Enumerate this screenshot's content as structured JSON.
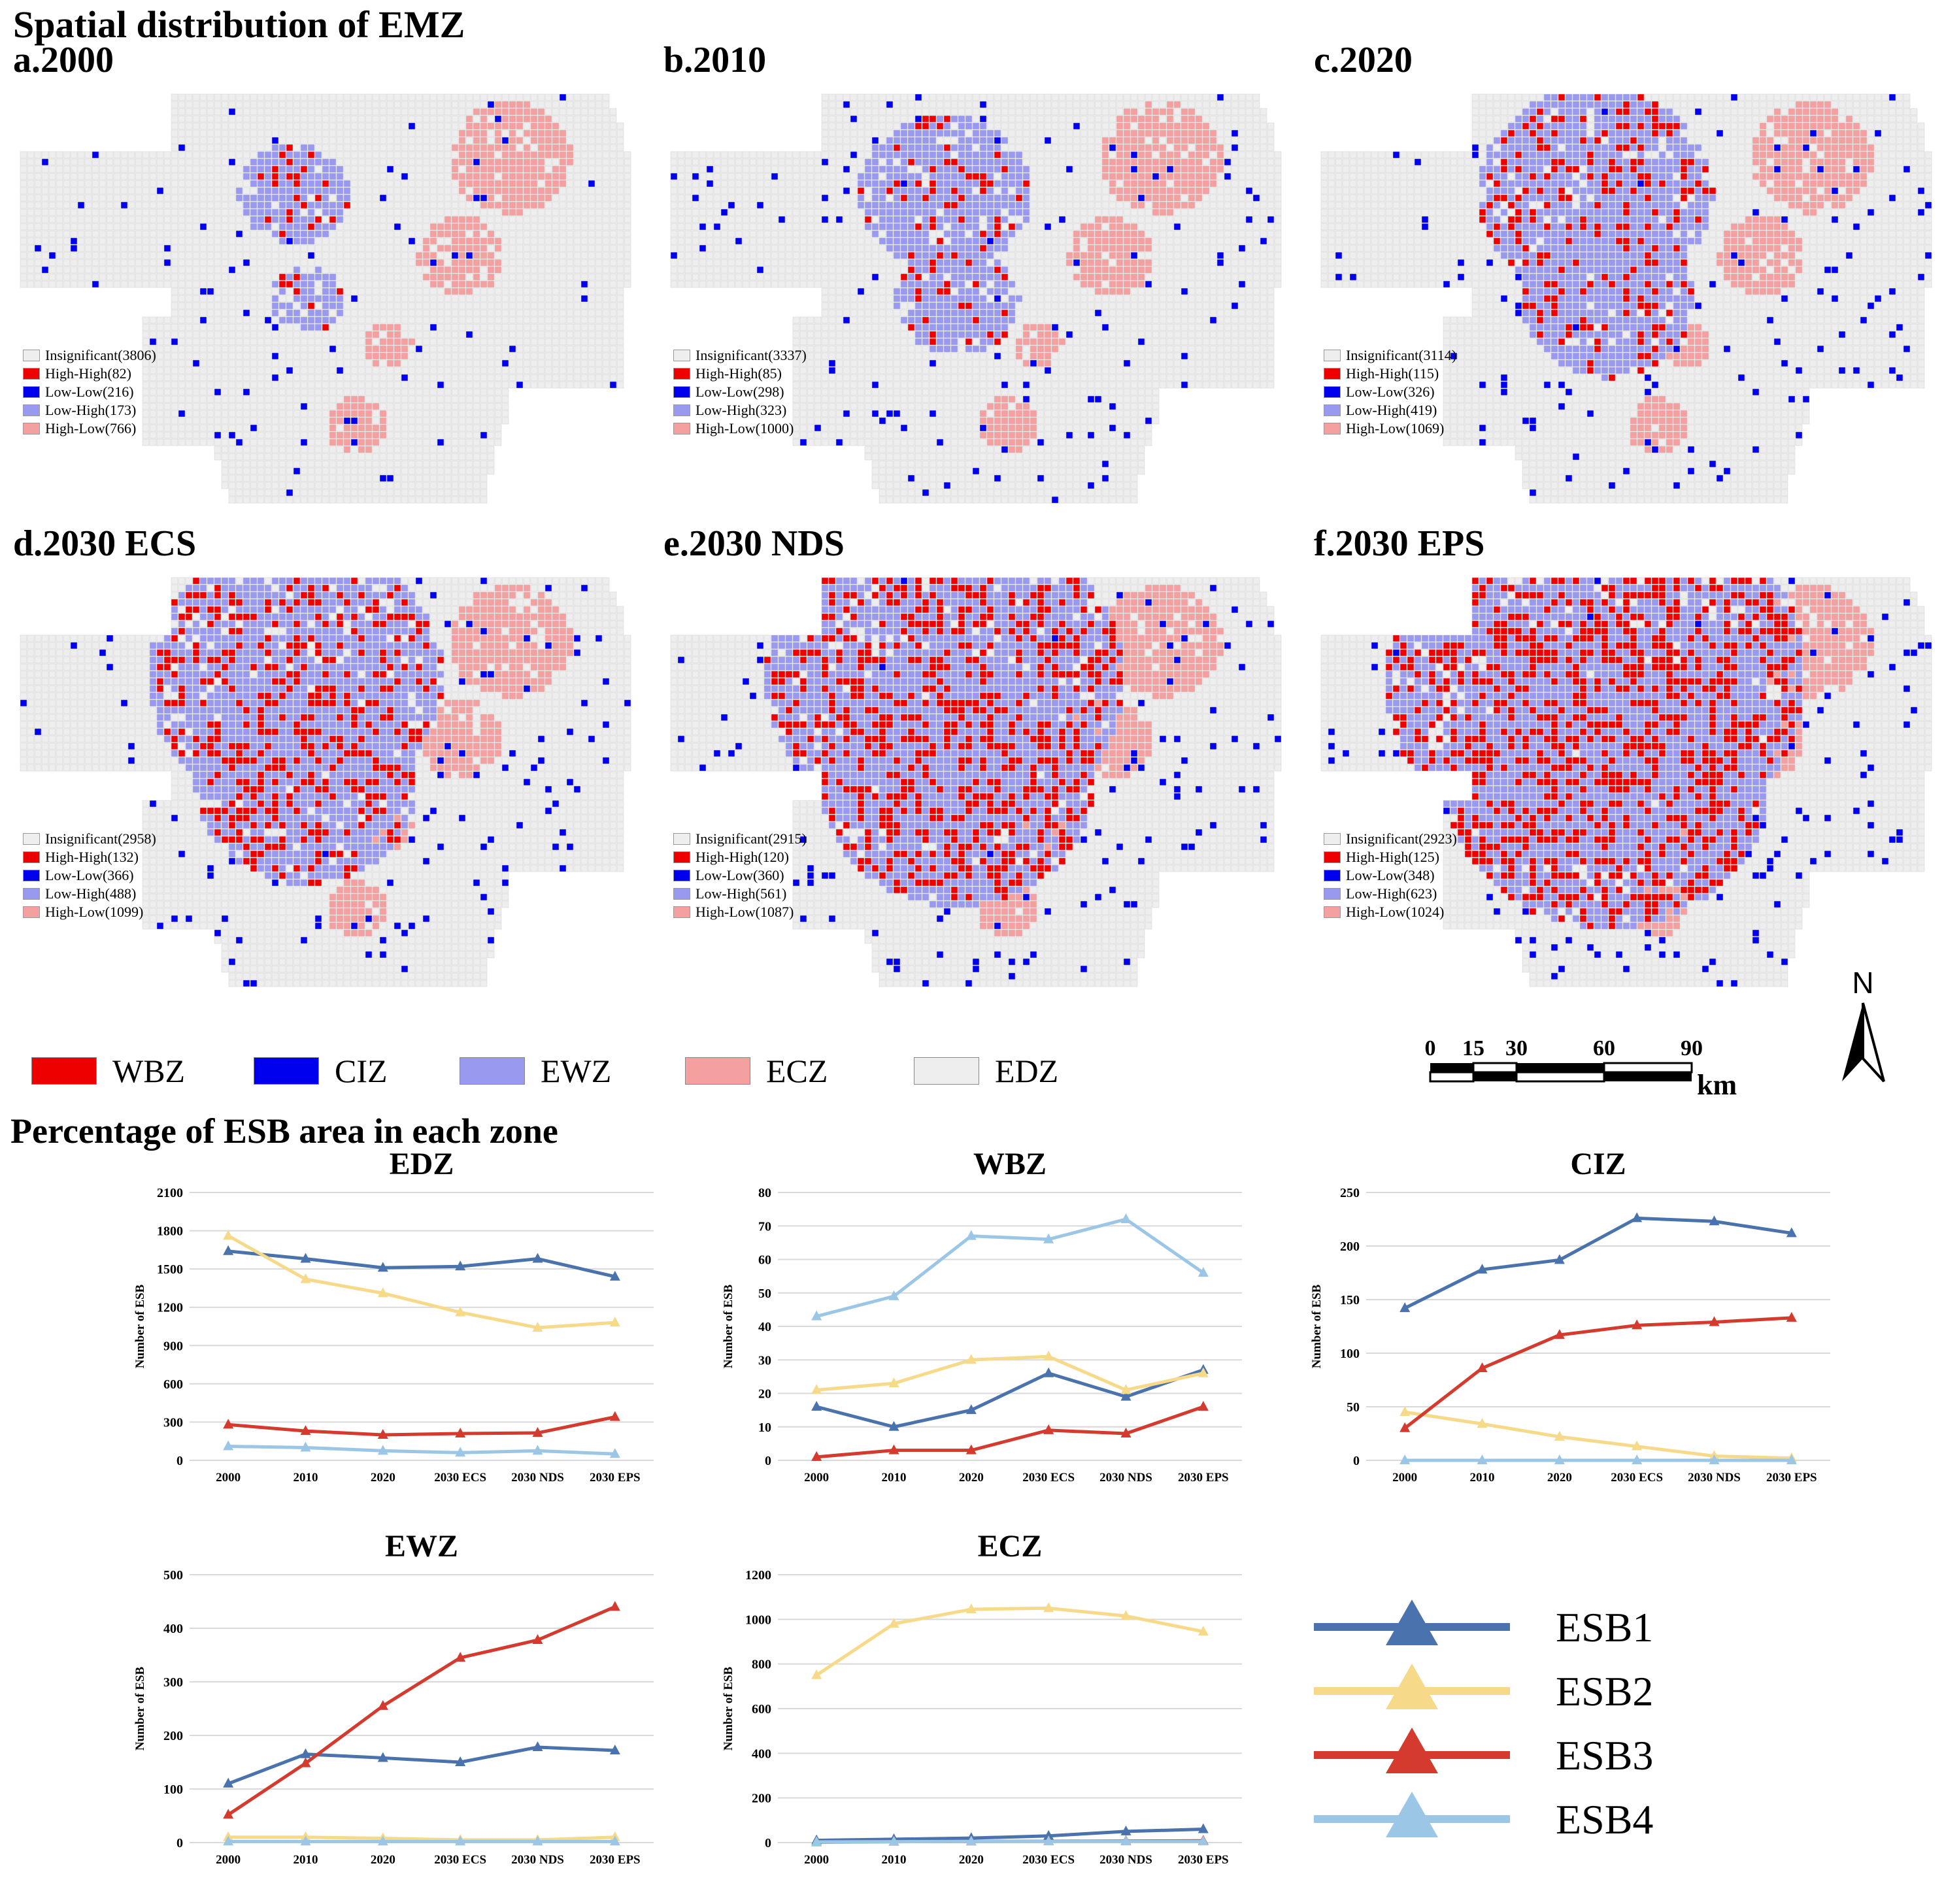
{
  "headings": {
    "spatial": "Spatial distribution of EMZ",
    "percentage": "Percentage of ESB area in each zone"
  },
  "colors": {
    "WBZ": "#ee0000",
    "CIZ": "#0000ee",
    "EWZ": "#9999f0",
    "ECZ": "#f4a0a0",
    "EDZ": "#eeeeee",
    "ESB1": "#4a72ac",
    "ESB2": "#f7d98a",
    "ESB3": "#d43a2e",
    "ESB4": "#9cc6e6"
  },
  "maps": [
    {
      "title": "a.2000",
      "legend": [
        "Insignificant(3806)",
        "High-High(82)",
        "Low-Low(216)",
        "Low-High(173)",
        "High-Low(766)"
      ]
    },
    {
      "title": "b.2010",
      "legend": [
        "Insignificant(3337)",
        "High-High(85)",
        "Low-Low(298)",
        "Low-High(323)",
        "High-Low(1000)"
      ]
    },
    {
      "title": "c.2020",
      "legend": [
        "Insignificant(3114)",
        "High-High(115)",
        "Low-Low(326)",
        "Low-High(419)",
        "High-Low(1069)"
      ]
    },
    {
      "title": "d.2030 ECS",
      "legend": [
        "Insignificant(2958)",
        "High-High(132)",
        "Low-Low(366)",
        "Low-High(488)",
        "High-Low(1099)"
      ]
    },
    {
      "title": "e.2030 NDS",
      "legend": [
        "Insignificant(2915)",
        "High-High(120)",
        "Low-Low(360)",
        "Low-High(561)",
        "High-Low(1087)"
      ]
    },
    {
      "title": "f.2030 EPS",
      "legend": [
        "Insignificant(2923)",
        "High-High(125)",
        "Low-Low(348)",
        "Low-High(623)",
        "High-Low(1024)"
      ]
    }
  ],
  "zone_legend": [
    "WBZ",
    "CIZ",
    "EWZ",
    "ECZ",
    "EDZ"
  ],
  "scale": {
    "ticks": [
      "0",
      "15",
      "30",
      "60",
      "90"
    ],
    "unit": "km",
    "north": "N"
  },
  "series_legend": [
    "ESB1",
    "ESB2",
    "ESB3",
    "ESB4"
  ],
  "chart_data": [
    {
      "type": "line",
      "title": "EDZ",
      "ylabel": "Number of ESB",
      "xlabel": "",
      "categories": [
        "2000",
        "2010",
        "2020",
        "2030 ECS",
        "2030 NDS",
        "2030 EPS"
      ],
      "ylim": [
        0,
        2100
      ],
      "yticks": [
        0,
        300,
        600,
        900,
        1200,
        1500,
        1800,
        2100
      ],
      "series": [
        {
          "name": "ESB1",
          "values": [
            1640,
            1580,
            1510,
            1520,
            1580,
            1440
          ]
        },
        {
          "name": "ESB2",
          "values": [
            1760,
            1420,
            1310,
            1160,
            1040,
            1080
          ]
        },
        {
          "name": "ESB3",
          "values": [
            280,
            230,
            200,
            210,
            215,
            340
          ]
        },
        {
          "name": "ESB4",
          "values": [
            110,
            100,
            75,
            60,
            75,
            50
          ]
        }
      ]
    },
    {
      "type": "line",
      "title": "WBZ",
      "ylabel": "Number of ESB",
      "xlabel": "",
      "categories": [
        "2000",
        "2010",
        "2020",
        "2030 ECS",
        "2030 NDS",
        "2030 EPS"
      ],
      "ylim": [
        0,
        80
      ],
      "yticks": [
        0,
        10,
        20,
        30,
        40,
        50,
        60,
        70,
        80
      ],
      "series": [
        {
          "name": "ESB1",
          "values": [
            16,
            10,
            15,
            26,
            19,
            27
          ]
        },
        {
          "name": "ESB2",
          "values": [
            21,
            23,
            30,
            31,
            21,
            26
          ]
        },
        {
          "name": "ESB3",
          "values": [
            1,
            3,
            3,
            9,
            8,
            16
          ]
        },
        {
          "name": "ESB4",
          "values": [
            43,
            49,
            67,
            66,
            72,
            56
          ]
        }
      ]
    },
    {
      "type": "line",
      "title": "CIZ",
      "ylabel": "Number of ESB",
      "xlabel": "",
      "categories": [
        "2000",
        "2010",
        "2020",
        "2030 ECS",
        "2030 NDS",
        "2030 EPS"
      ],
      "ylim": [
        0,
        250
      ],
      "yticks": [
        0,
        50,
        100,
        150,
        200,
        250
      ],
      "series": [
        {
          "name": "ESB1",
          "values": [
            142,
            178,
            187,
            226,
            223,
            212
          ]
        },
        {
          "name": "ESB2",
          "values": [
            45,
            34,
            22,
            13,
            4,
            2
          ]
        },
        {
          "name": "ESB3",
          "values": [
            30,
            86,
            117,
            126,
            129,
            133
          ]
        },
        {
          "name": "ESB4",
          "values": [
            0,
            0,
            0,
            0,
            0,
            0
          ]
        }
      ]
    },
    {
      "type": "line",
      "title": "EWZ",
      "ylabel": "Number of ESB",
      "xlabel": "",
      "categories": [
        "2000",
        "2010",
        "2020",
        "2030 ECS",
        "2030 NDS",
        "2030 EPS"
      ],
      "ylim": [
        0,
        500
      ],
      "yticks": [
        0,
        100,
        200,
        300,
        400,
        500
      ],
      "series": [
        {
          "name": "ESB1",
          "values": [
            110,
            165,
            158,
            150,
            178,
            172
          ]
        },
        {
          "name": "ESB2",
          "values": [
            10,
            10,
            8,
            5,
            5,
            10
          ]
        },
        {
          "name": "ESB3",
          "values": [
            52,
            148,
            255,
            345,
            378,
            440
          ]
        },
        {
          "name": "ESB4",
          "values": [
            2,
            2,
            2,
            2,
            2,
            2
          ]
        }
      ]
    },
    {
      "type": "line",
      "title": "ECZ",
      "ylabel": "Number of ESB",
      "xlabel": "",
      "categories": [
        "2000",
        "2010",
        "2020",
        "2030 ECS",
        "2030 NDS",
        "2030 EPS"
      ],
      "ylim": [
        0,
        1200
      ],
      "yticks": [
        0,
        200,
        400,
        600,
        800,
        1000,
        1200
      ],
      "series": [
        {
          "name": "ESB1",
          "values": [
            10,
            15,
            20,
            30,
            50,
            60
          ]
        },
        {
          "name": "ESB2",
          "values": [
            750,
            980,
            1045,
            1050,
            1015,
            945
          ]
        },
        {
          "name": "ESB3",
          "values": [
            2,
            4,
            5,
            6,
            7,
            8
          ]
        },
        {
          "name": "ESB4",
          "values": [
            3,
            4,
            5,
            5,
            5,
            5
          ]
        }
      ]
    }
  ]
}
